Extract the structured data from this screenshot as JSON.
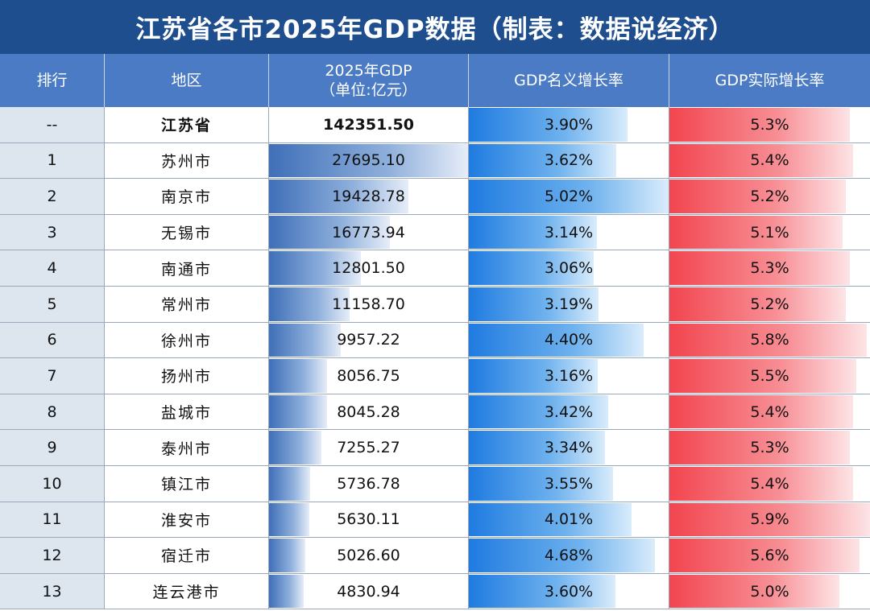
{
  "title": "江苏省各市2025年GDP数据（制表：数据说经济）",
  "headers": {
    "rank": "排行",
    "region": "地区",
    "gdp_line1": "2025年GDP",
    "gdp_line2": "（单位:亿元）",
    "nominal": "GDP名义增长率",
    "real": "GDP实际增长率"
  },
  "colors": {
    "title_bg": "#1f4e8f",
    "header_bg": "#4a7bc4",
    "gdp_bar": "#3f6fb8",
    "nominal_bar": "#1f7be0",
    "real_bar": "#f2454f"
  },
  "rows": [
    {
      "rank": "--",
      "region": "江苏省",
      "gdp": "142351.50",
      "nominal": "3.90%",
      "real": "5.3%",
      "gdp_fill": 0,
      "nominal_fill": 0.794,
      "real_fill": 0.898
    },
    {
      "rank": "1",
      "region": "苏州市",
      "gdp": "27695.10",
      "nominal": "3.62%",
      "real": "5.4%",
      "gdp_fill": 1.0,
      "nominal_fill": 0.737,
      "real_fill": 0.915
    },
    {
      "rank": "2",
      "region": "南京市",
      "gdp": "19428.78",
      "nominal": "5.02%",
      "real": "5.2%",
      "gdp_fill": 0.702,
      "nominal_fill": 1.0,
      "real_fill": 0.881
    },
    {
      "rank": "3",
      "region": "无锡市",
      "gdp": "16773.94",
      "nominal": "3.14%",
      "real": "5.1%",
      "gdp_fill": 0.606,
      "nominal_fill": 0.64,
      "real_fill": 0.864
    },
    {
      "rank": "4",
      "region": "南通市",
      "gdp": "12801.50",
      "nominal": "3.06%",
      "real": "5.3%",
      "gdp_fill": 0.462,
      "nominal_fill": 0.623,
      "real_fill": 0.898
    },
    {
      "rank": "5",
      "region": "常州市",
      "gdp": "11158.70",
      "nominal": "3.19%",
      "real": "5.2%",
      "gdp_fill": 0.403,
      "nominal_fill": 0.65,
      "real_fill": 0.881
    },
    {
      "rank": "6",
      "region": "徐州市",
      "gdp": "9957.22",
      "nominal": "4.40%",
      "real": "5.8%",
      "gdp_fill": 0.36,
      "nominal_fill": 0.876,
      "real_fill": 0.983
    },
    {
      "rank": "7",
      "region": "扬州市",
      "gdp": "8056.75",
      "nominal": "3.16%",
      "real": "5.5%",
      "gdp_fill": 0.291,
      "nominal_fill": 0.644,
      "real_fill": 0.932
    },
    {
      "rank": "8",
      "region": "盐城市",
      "gdp": "8045.28",
      "nominal": "3.42%",
      "real": "5.4%",
      "gdp_fill": 0.29,
      "nominal_fill": 0.697,
      "real_fill": 0.915
    },
    {
      "rank": "9",
      "region": "泰州市",
      "gdp": "7255.27",
      "nominal": "3.34%",
      "real": "5.3%",
      "gdp_fill": 0.262,
      "nominal_fill": 0.68,
      "real_fill": 0.898
    },
    {
      "rank": "10",
      "region": "镇江市",
      "gdp": "5736.78",
      "nominal": "3.55%",
      "real": "5.4%",
      "gdp_fill": 0.207,
      "nominal_fill": 0.723,
      "real_fill": 0.915
    },
    {
      "rank": "11",
      "region": "淮安市",
      "gdp": "5630.11",
      "nominal": "4.01%",
      "real": "5.9%",
      "gdp_fill": 0.203,
      "nominal_fill": 0.816,
      "real_fill": 1.0
    },
    {
      "rank": "12",
      "region": "宿迁市",
      "gdp": "5026.60",
      "nominal": "4.68%",
      "real": "5.6%",
      "gdp_fill": 0.181,
      "nominal_fill": 0.931,
      "real_fill": 0.949
    },
    {
      "rank": "13",
      "region": "连云港市",
      "gdp": "4830.94",
      "nominal": "3.60%",
      "real": "5.0%",
      "gdp_fill": 0.174,
      "nominal_fill": 0.733,
      "real_fill": 0.847
    }
  ]
}
